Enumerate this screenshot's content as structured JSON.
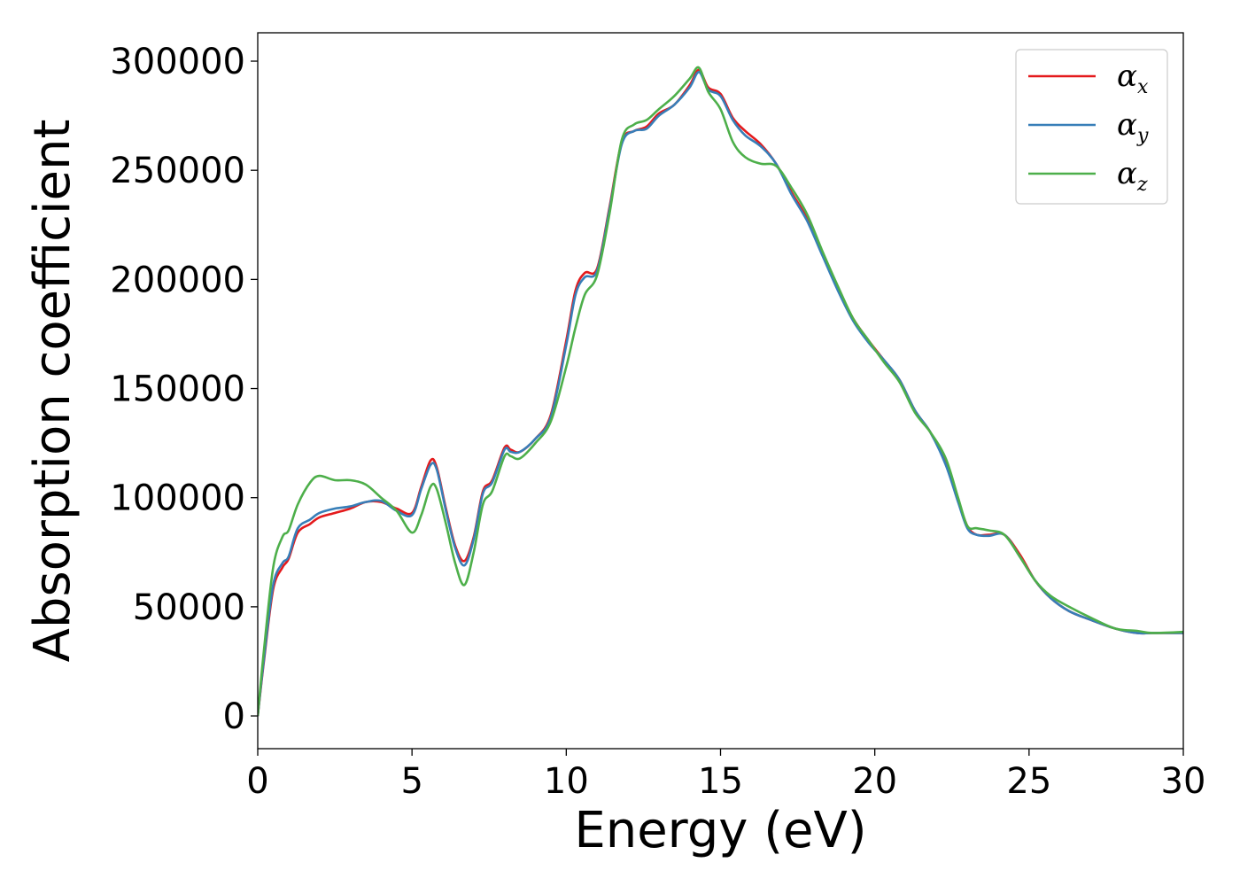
{
  "chart_data": {
    "type": "line",
    "xlabel": "Energy (eV)",
    "ylabel": "Absorption coefficient",
    "xlim": [
      0,
      30
    ],
    "ylim": [
      -15000,
      313000
    ],
    "xticks": [
      0,
      5,
      10,
      15,
      20,
      25,
      30
    ],
    "yticks": [
      0,
      50000,
      100000,
      150000,
      200000,
      250000,
      300000
    ],
    "grid": false,
    "legend_position": "top-right",
    "series": [
      {
        "name": "α",
        "name_sub": "x",
        "color": "#e41a1c",
        "x": [
          0,
          0.2,
          0.5,
          0.8,
          1.0,
          1.3,
          1.7,
          2.0,
          2.5,
          3.0,
          3.5,
          4.0,
          4.5,
          5.0,
          5.3,
          5.6,
          5.8,
          6.1,
          6.4,
          6.7,
          7.0,
          7.3,
          7.6,
          8.0,
          8.2,
          8.5,
          9.0,
          9.5,
          10.0,
          10.3,
          10.6,
          11.0,
          11.4,
          11.8,
          12.2,
          12.6,
          13.0,
          13.5,
          14.0,
          14.3,
          14.6,
          15.0,
          15.4,
          15.8,
          16.3,
          16.8,
          17.3,
          17.8,
          18.3,
          18.8,
          19.3,
          19.8,
          20.3,
          20.8,
          21.3,
          21.8,
          22.3,
          22.7,
          23.0,
          23.3,
          23.7,
          24.2,
          24.7,
          25.2,
          25.7,
          26.3,
          27.0,
          27.8,
          28.5,
          29.0,
          30.0
        ],
        "y": [
          0,
          25000,
          58000,
          68000,
          72000,
          84000,
          88000,
          91000,
          93000,
          95000,
          98000,
          98000,
          95000,
          93000,
          105000,
          117000,
          114000,
          95000,
          78000,
          71000,
          82000,
          103000,
          108000,
          123000,
          122000,
          121000,
          127000,
          138000,
          172000,
          195000,
          203000,
          205000,
          233000,
          263000,
          268000,
          270000,
          276000,
          280000,
          289000,
          296000,
          288000,
          285000,
          274000,
          268000,
          262000,
          253000,
          240000,
          228000,
          212000,
          196000,
          182000,
          172000,
          163000,
          154000,
          140000,
          130000,
          116000,
          99000,
          87000,
          83000,
          83000,
          83000,
          74000,
          62000,
          54000,
          48000,
          44000,
          40000,
          38000,
          38000,
          38000
        ]
      },
      {
        "name": "α",
        "name_sub": "y",
        "color": "#377eb8",
        "x": [
          0,
          0.2,
          0.5,
          0.8,
          1.0,
          1.3,
          1.7,
          2.0,
          2.5,
          3.0,
          3.5,
          4.0,
          4.5,
          5.0,
          5.3,
          5.6,
          5.8,
          6.1,
          6.4,
          6.7,
          7.0,
          7.3,
          7.6,
          8.0,
          8.2,
          8.5,
          9.0,
          9.5,
          10.0,
          10.3,
          10.6,
          11.0,
          11.4,
          11.8,
          12.2,
          12.6,
          13.0,
          13.5,
          14.0,
          14.3,
          14.6,
          15.0,
          15.4,
          15.8,
          16.3,
          16.8,
          17.3,
          17.8,
          18.3,
          18.8,
          19.3,
          19.8,
          20.3,
          20.8,
          21.3,
          21.8,
          22.3,
          22.7,
          23.0,
          23.3,
          23.7,
          24.2,
          24.7,
          25.2,
          25.7,
          26.3,
          27.0,
          27.8,
          28.5,
          29.0,
          30.0
        ],
        "y": [
          0,
          26000,
          60000,
          70000,
          73000,
          86000,
          90000,
          93000,
          95000,
          96000,
          98000,
          98500,
          94000,
          92000,
          104000,
          115000,
          113000,
          94000,
          77000,
          69000,
          81000,
          102000,
          107000,
          122000,
          121000,
          121000,
          127000,
          137000,
          170000,
          193000,
          201000,
          204000,
          232000,
          262000,
          268000,
          269000,
          275000,
          280000,
          288000,
          295000,
          287000,
          284000,
          273000,
          266000,
          261000,
          253000,
          239000,
          227000,
          211000,
          195000,
          181000,
          171000,
          163000,
          154000,
          140000,
          130000,
          115000,
          98000,
          86000,
          83000,
          82500,
          83000,
          73000,
          62000,
          54000,
          48000,
          44000,
          40000,
          38000,
          38000,
          38000
        ]
      },
      {
        "name": "α",
        "name_sub": "z",
        "color": "#4daf4a",
        "x": [
          0,
          0.2,
          0.5,
          0.8,
          1.0,
          1.3,
          1.7,
          2.0,
          2.5,
          3.0,
          3.5,
          4.0,
          4.5,
          5.0,
          5.3,
          5.6,
          5.8,
          6.1,
          6.4,
          6.7,
          7.0,
          7.3,
          7.6,
          8.0,
          8.2,
          8.5,
          9.0,
          9.5,
          10.0,
          10.3,
          10.6,
          11.0,
          11.4,
          11.8,
          12.2,
          12.6,
          13.0,
          13.5,
          14.0,
          14.3,
          14.6,
          15.0,
          15.4,
          15.8,
          16.3,
          16.8,
          17.3,
          17.8,
          18.3,
          18.8,
          19.3,
          19.8,
          20.3,
          20.8,
          21.3,
          21.8,
          22.3,
          22.7,
          23.0,
          23.3,
          23.7,
          24.2,
          24.7,
          25.2,
          25.7,
          26.3,
          27.0,
          27.8,
          28.5,
          29.0,
          30.0
        ],
        "y": [
          0,
          30000,
          68000,
          82000,
          85000,
          97000,
          107000,
          110000,
          108000,
          108000,
          106000,
          100000,
          94000,
          84000,
          92000,
          105000,
          104000,
          88000,
          70000,
          60000,
          75000,
          97000,
          103000,
          119000,
          119000,
          118000,
          125000,
          135000,
          160000,
          178000,
          193000,
          202000,
          230000,
          264000,
          271000,
          273000,
          278000,
          284000,
          292000,
          297000,
          286000,
          278000,
          263000,
          256000,
          253000,
          252000,
          242000,
          230000,
          213000,
          197000,
          182000,
          172000,
          162000,
          153000,
          139000,
          130000,
          118000,
          100000,
          87000,
          86000,
          85000,
          83000,
          73000,
          62000,
          55000,
          50000,
          45000,
          40000,
          39000,
          38000,
          38500
        ]
      }
    ]
  }
}
